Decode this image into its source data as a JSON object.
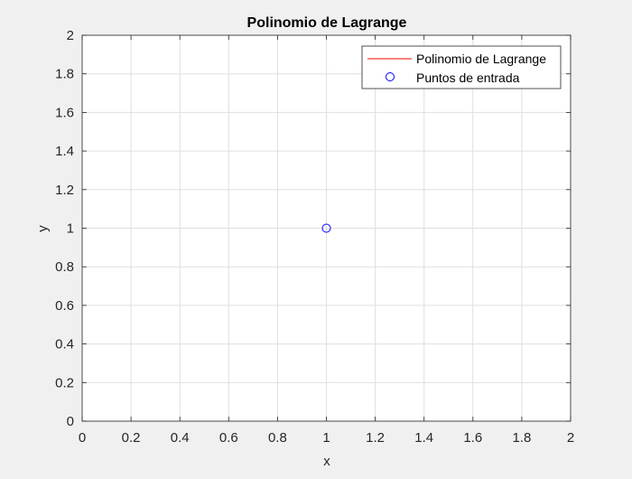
{
  "chart_data": {
    "type": "scatter",
    "title": "Polinomio de Lagrange",
    "xlabel": "x",
    "ylabel": "y",
    "xlim": [
      0,
      2
    ],
    "ylim": [
      0,
      2
    ],
    "xticks": [
      0,
      0.2,
      0.4,
      0.6,
      0.8,
      1,
      1.2,
      1.4,
      1.6,
      1.8,
      2
    ],
    "xtick_labels": [
      "0",
      "0.2",
      "0.4",
      "0.6",
      "0.8",
      "1",
      "1.2",
      "1.4",
      "1.6",
      "1.8",
      "2"
    ],
    "yticks": [
      0,
      0.2,
      0.4,
      0.6,
      0.8,
      1,
      1.2,
      1.4,
      1.6,
      1.8,
      2
    ],
    "ytick_labels": [
      "0",
      "0.2",
      "0.4",
      "0.6",
      "0.8",
      "1",
      "1.2",
      "1.4",
      "1.6",
      "1.8",
      "2"
    ],
    "grid": true,
    "legend_position": "top-right",
    "series": [
      {
        "name": "Polinomio de Lagrange",
        "kind": "line",
        "color": "#ff0000",
        "x": [],
        "y": []
      },
      {
        "name": "Puntos de entrada",
        "kind": "marker",
        "marker": "circle",
        "color": "#0000ff",
        "x": [
          1
        ],
        "y": [
          1
        ]
      }
    ]
  }
}
